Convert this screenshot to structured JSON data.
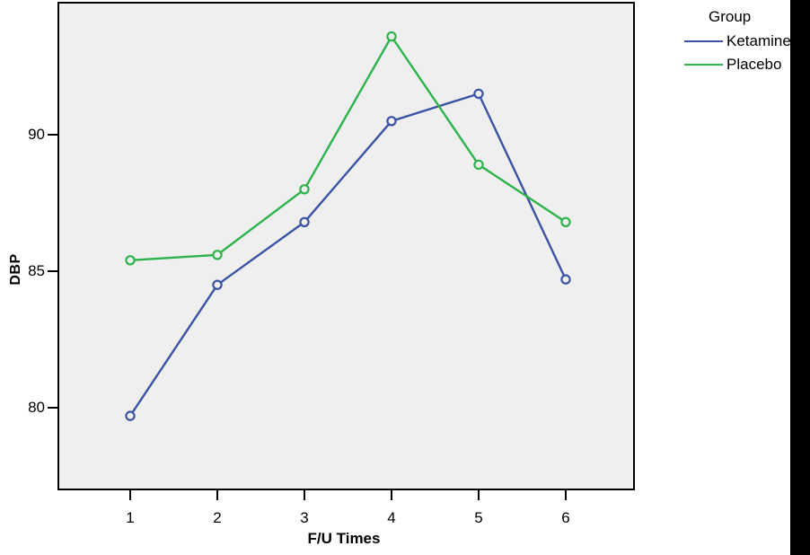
{
  "figure": {
    "plot_bg": "#efefef",
    "frame_color": "#000000",
    "outer_bg": "#ffffff",
    "right_edge_bar_color": "#000000"
  },
  "legend": {
    "title": "Group"
  },
  "chart_data": {
    "type": "line",
    "title": "",
    "xlabel": "F/U Times",
    "ylabel": "DBP",
    "x": [
      1,
      2,
      3,
      4,
      5,
      6
    ],
    "x_tick_labels": [
      "1",
      "2",
      "3",
      "4",
      "5",
      "6"
    ],
    "y_ticks": [
      80,
      85,
      90
    ],
    "ylim": [
      77,
      95
    ],
    "grid": false,
    "marker": "open-circle",
    "legend_position": "top-right-outside",
    "series": [
      {
        "name": "Ketamine",
        "color": "#3a53a4",
        "values": [
          79.7,
          84.5,
          86.8,
          90.5,
          91.5,
          84.7
        ]
      },
      {
        "name": "Placebo",
        "color": "#2db34c",
        "values": [
          85.4,
          85.6,
          88.0,
          93.6,
          88.9,
          86.8
        ]
      }
    ]
  }
}
